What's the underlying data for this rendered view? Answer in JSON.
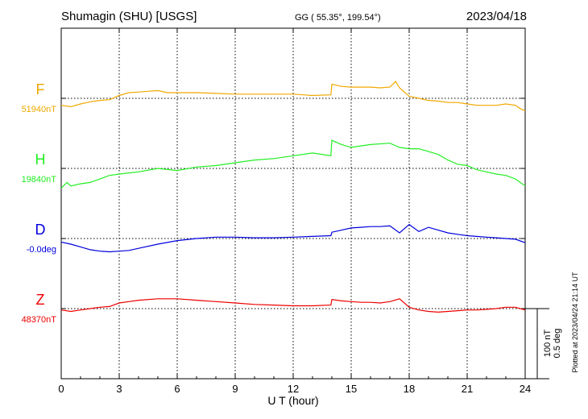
{
  "header": {
    "station": "Shumagin (SHU)  [USGS]",
    "coords": "GG ( 55.35°, 199.54°)",
    "date": "2023/04/18"
  },
  "side_note": "Plotted at 2023/04/24 21:14 UT",
  "scale": {
    "line1": "100 nT",
    "line2": "0.5 deg"
  },
  "chart_data": {
    "type": "line",
    "title": "Shumagin (SHU)  [USGS]",
    "xlabel": "U T (hour)",
    "xlim": [
      0,
      24
    ],
    "xticks": [
      "0",
      "3",
      "6",
      "9",
      "12",
      "15",
      "18",
      "21",
      "24"
    ],
    "grid": true,
    "series": [
      {
        "name": "F",
        "baseline_label": "51940nT",
        "color": "#f0a800",
        "units_per_div": 100,
        "x": [
          0,
          0.5,
          1,
          1.5,
          2,
          2.5,
          3,
          3.5,
          4,
          4.5,
          5,
          5.5,
          6,
          7,
          8,
          9,
          10,
          11,
          12,
          13,
          13.95,
          14,
          14.5,
          15,
          15.5,
          16,
          16.5,
          17,
          17.3,
          17.5,
          18,
          18.5,
          19,
          19.5,
          20,
          20.5,
          21,
          21.5,
          22,
          22.5,
          23,
          23.5,
          23.7,
          24
        ],
        "values": [
          -10,
          -12,
          -8,
          -5,
          -3,
          -2,
          4,
          8,
          9,
          10,
          11,
          8,
          8,
          8,
          7,
          6,
          6,
          6,
          6,
          4,
          5,
          20,
          17,
          16,
          16,
          16,
          15,
          16,
          24,
          15,
          3,
          0,
          -3,
          -4,
          -6,
          -6,
          -8,
          -10,
          -10,
          -10,
          -8,
          -10,
          -14,
          -18
        ]
      },
      {
        "name": "H",
        "baseline_label": "19840nT",
        "color": "#22ee22",
        "units_per_div": 100,
        "x": [
          0,
          0.3,
          0.5,
          1,
          1.5,
          2,
          2.5,
          3,
          4,
          5,
          6,
          7,
          8,
          9,
          10,
          11,
          12,
          13,
          13.95,
          14,
          14.5,
          15,
          16,
          17,
          17.5,
          18,
          18.5,
          19,
          19.5,
          20,
          20.5,
          21,
          21.5,
          22,
          22.5,
          23,
          23.5,
          24
        ],
        "values": [
          -28,
          -20,
          -25,
          -22,
          -20,
          -15,
          -10,
          -8,
          -5,
          0,
          -3,
          2,
          4,
          8,
          12,
          14,
          18,
          22,
          18,
          40,
          34,
          30,
          34,
          36,
          30,
          28,
          28,
          24,
          20,
          12,
          6,
          4,
          -2,
          -5,
          -8,
          -10,
          -15,
          -25
        ]
      },
      {
        "name": "D",
        "baseline_label": "-0.0deg",
        "color": "#0000dd",
        "units_per_div": 0.5,
        "x": [
          0,
          0.5,
          1,
          1.5,
          2,
          2.5,
          3,
          3.5,
          4,
          5,
          6,
          7,
          8,
          9,
          10,
          11,
          12,
          13,
          13.95,
          14,
          14.5,
          15,
          15.5,
          16,
          16.5,
          17,
          17.5,
          18,
          18.5,
          19,
          19.5,
          20,
          20.5,
          21,
          21.5,
          22,
          22.5,
          23,
          23.5,
          24
        ],
        "values": [
          -0.025,
          -0.04,
          -0.06,
          -0.08,
          -0.09,
          -0.095,
          -0.09,
          -0.085,
          -0.07,
          -0.04,
          -0.015,
          0,
          0.01,
          0.01,
          0.005,
          0.005,
          0.01,
          0.015,
          0.02,
          0.045,
          0.06,
          0.075,
          0.08,
          0.085,
          0.085,
          0.09,
          0.04,
          0.1,
          0.05,
          0.08,
          0.06,
          0.04,
          0.03,
          0.02,
          0.015,
          0.01,
          0.005,
          0,
          -0.005,
          -0.03
        ]
      },
      {
        "name": "Z",
        "baseline_label": "48370nT",
        "color": "#ee0000",
        "units_per_div": 100,
        "x": [
          0,
          0.5,
          1,
          1.5,
          2,
          2.5,
          3,
          3.5,
          4,
          5,
          6,
          7,
          8,
          9,
          10,
          11,
          12,
          13,
          13.95,
          14,
          14.5,
          15,
          15.5,
          16,
          16.5,
          17,
          17.5,
          18,
          18.5,
          19,
          19.5,
          20,
          20.5,
          21,
          21.5,
          22,
          22.5,
          23,
          23.5,
          24
        ],
        "values": [
          -2,
          -4,
          -2,
          0,
          2,
          3,
          8,
          10,
          12,
          14,
          14,
          12,
          10,
          8,
          6,
          5,
          4,
          4,
          5,
          13,
          11,
          10,
          9,
          9,
          8,
          10,
          14,
          2,
          -2,
          -4,
          -5,
          -4,
          -3,
          -2,
          -2,
          -1,
          0,
          2,
          2,
          -2
        ]
      }
    ]
  }
}
